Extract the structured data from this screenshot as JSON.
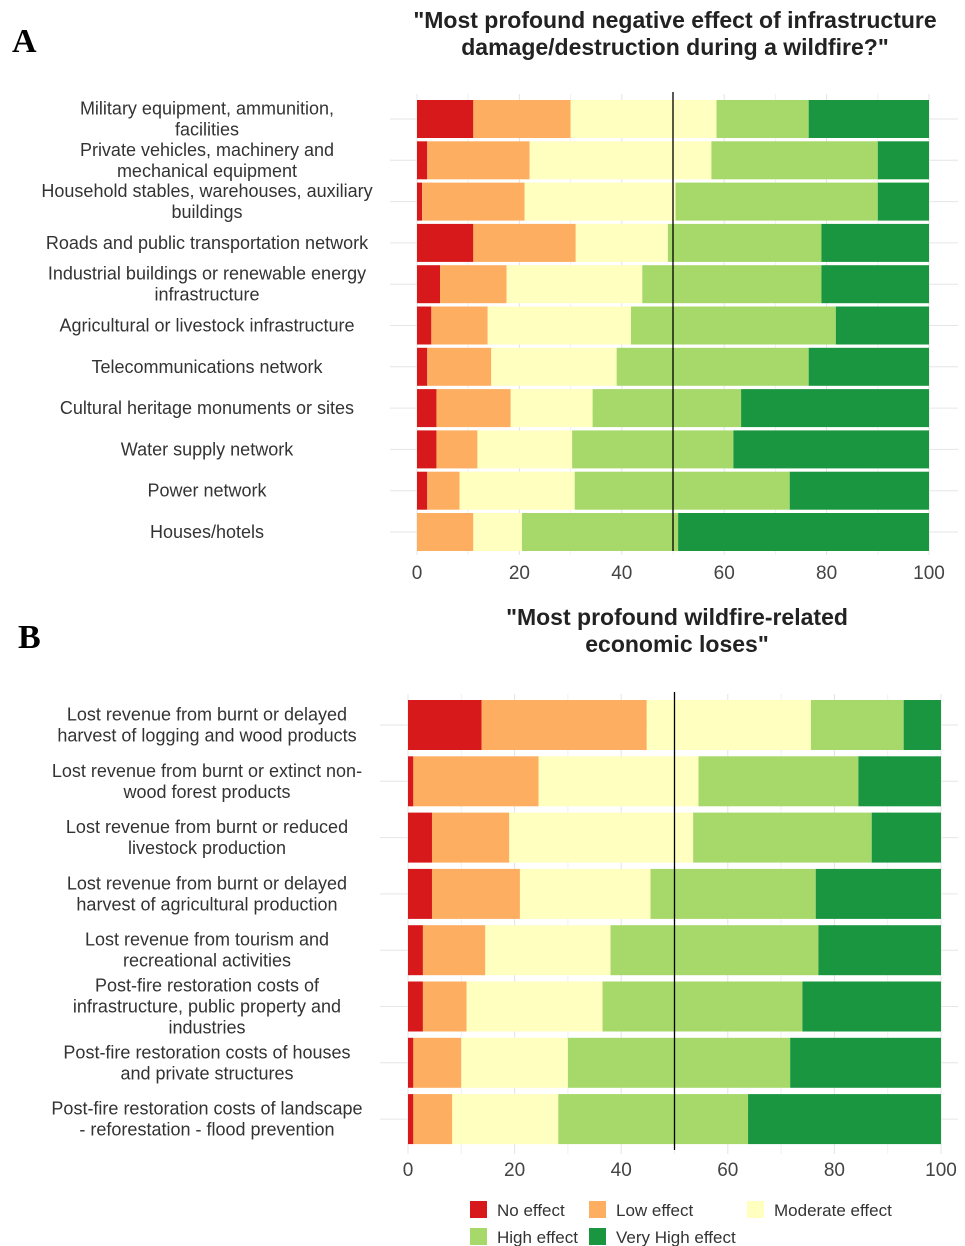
{
  "legend": [
    {
      "label": "No effect",
      "color": "#d7191c"
    },
    {
      "label": "Low effect",
      "color": "#fdae61"
    },
    {
      "label": "Moderate effect",
      "color": "#ffffbf"
    },
    {
      "label": "High effect",
      "color": "#a6d96a"
    },
    {
      "label": "Very High effect",
      "color": "#1a9641"
    }
  ],
  "chart_data": [
    {
      "type": "bar",
      "orientation": "horizontal",
      "stacked": true,
      "panel": "A",
      "title": "\"Most profound negative effect of infrastructure damage/destruction during a wildfire?\"",
      "title_lines": [
        "\"Most profound negative effect of infrastructure",
        "damage/destruction during a wildfire?\""
      ],
      "xlim": [
        0,
        100
      ],
      "xticks": [
        "0",
        "20",
        "40",
        "60",
        "80",
        "100"
      ],
      "reference_line": 50,
      "grid": true,
      "categories": [
        "Military equipment, ammunition, facilities",
        "Private vehicles, machinery and mechanical equipment",
        "Household stables, warehouses, auxiliary buildings",
        "Roads and public transportation network",
        "Industrial buildings or renewable energy infrastructure",
        "Agricultural or livestock infrastructure",
        "Telecommunications network",
        "Cultural heritage monuments or sites",
        "Water supply network",
        "Power network",
        "Houses/hotels"
      ],
      "category_lines": [
        [
          "Military equipment, ammunition,",
          "facilities"
        ],
        [
          "Private vehicles, machinery and",
          "mechanical equipment"
        ],
        [
          "Household stables, warehouses, auxiliary",
          "buildings"
        ],
        [
          "Roads and public transportation network"
        ],
        [
          "Industrial buildings or renewable energy",
          "infrastructure"
        ],
        [
          "Agricultural or livestock infrastructure"
        ],
        [
          "Telecommunications network"
        ],
        [
          "Cultural heritage monuments or sites"
        ],
        [
          "Water supply network"
        ],
        [
          "Power network"
        ],
        [
          "Houses/hotels"
        ]
      ],
      "series": [
        {
          "name": "No effect",
          "values": [
            11,
            2,
            1,
            11,
            4.5,
            2.8,
            2,
            3.8,
            3.8,
            2,
            0
          ]
        },
        {
          "name": "Low effect",
          "values": [
            19,
            20,
            20,
            20,
            13,
            11,
            12.5,
            14.5,
            8,
            6.3,
            11
          ]
        },
        {
          "name": "Moderate effect",
          "values": [
            28.5,
            35.5,
            29.5,
            18,
            26.5,
            28,
            24.5,
            16,
            18.5,
            22.5,
            9.5
          ]
        },
        {
          "name": "High effect",
          "values": [
            18,
            32.5,
            39.5,
            30,
            35,
            40,
            37.5,
            29,
            31.5,
            42,
            30.5
          ]
        },
        {
          "name": "Very High effect",
          "values": [
            23.5,
            10,
            10,
            21,
            21,
            18.2,
            23.5,
            36.7,
            38.2,
            27.2,
            49
          ]
        }
      ]
    },
    {
      "type": "bar",
      "orientation": "horizontal",
      "stacked": true,
      "panel": "B",
      "title": "\"Most profound wildfire-related economic loses\"",
      "title_lines": [
        "\"Most profound wildfire-related",
        "economic loses\""
      ],
      "xlim": [
        0,
        100
      ],
      "xticks": [
        "0",
        "20",
        "40",
        "60",
        "80",
        "100"
      ],
      "reference_line": 50,
      "grid": true,
      "categories": [
        "Lost revenue from burnt or delayed harvest of logging and wood products",
        "Lost revenue from burnt or extinct non-wood forest products",
        "Lost revenue from burnt or reduced livestock production",
        "Lost revenue from burnt or delayed harvest of agricultural production",
        "Lost revenue from tourism and recreational activities",
        "Post-fire restoration costs of infrastructure, public property and industries",
        "Post-fire restoration costs of houses and private structures",
        "Post-fire restoration costs of landscape - reforestation - flood prevention"
      ],
      "category_lines": [
        [
          "Lost revenue from burnt or delayed",
          "harvest of logging and wood products"
        ],
        [
          "Lost revenue from burnt or extinct non-",
          "wood forest products"
        ],
        [
          "Lost revenue from burnt or reduced",
          "livestock production"
        ],
        [
          "Lost revenue from burnt or delayed",
          "harvest of agricultural production"
        ],
        [
          "Lost revenue from tourism and",
          "recreational activities"
        ],
        [
          "Post-fire restoration costs of",
          "infrastructure, public property and",
          "industries"
        ],
        [
          "Post-fire restoration costs of houses",
          "and private structures"
        ],
        [
          "Post-fire restoration costs of landscape",
          "- reforestation - flood prevention"
        ]
      ],
      "series": [
        {
          "name": "No effect",
          "values": [
            13.8,
            1,
            4.5,
            4.5,
            2.8,
            2.8,
            1,
            1
          ]
        },
        {
          "name": "Low effect",
          "values": [
            31,
            23.5,
            14.5,
            16.5,
            11.7,
            8.2,
            9,
            7.3
          ]
        },
        {
          "name": "Moderate effect",
          "values": [
            30.8,
            30,
            34.5,
            24.5,
            23.5,
            25.5,
            20,
            19.9
          ]
        },
        {
          "name": "High effect",
          "values": [
            17.4,
            30,
            33.5,
            31,
            39,
            37.5,
            41.7,
            35.6
          ]
        },
        {
          "name": "Very High effect",
          "values": [
            7,
            15.5,
            13,
            23.5,
            23,
            26,
            28.3,
            36.2
          ]
        }
      ]
    }
  ]
}
